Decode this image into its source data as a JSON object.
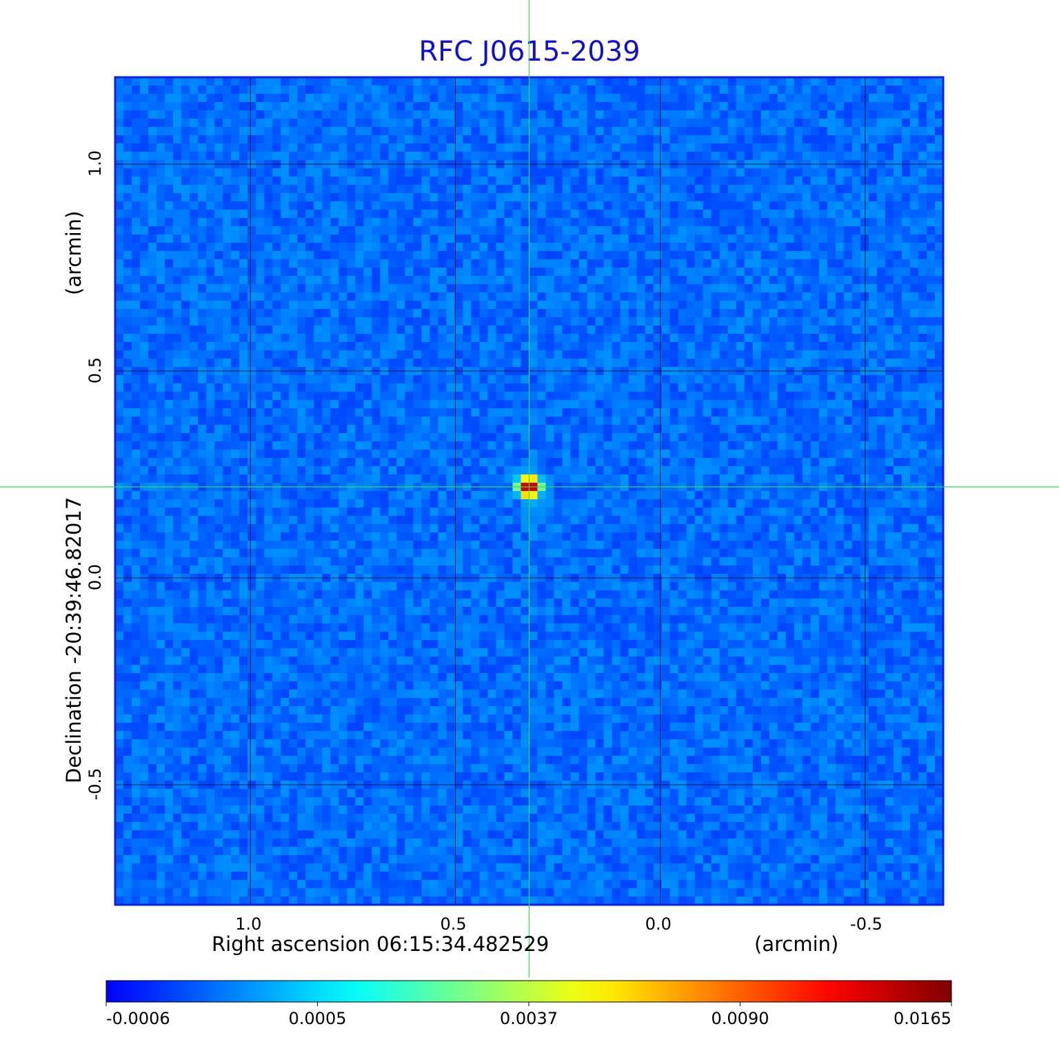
{
  "chart_data": {
    "type": "heatmap",
    "title": "RFC J0615-2039",
    "xlabel": "Right ascension  06:15:34.482529",
    "xunit": "(arcmin)",
    "ylabel": "Declination  -20:39:46.82017",
    "yunit": "(arcmin)",
    "x_ticks": [
      "1.0",
      "0.5",
      "0.0",
      "-0.5"
    ],
    "x_tick_values": [
      1.0,
      0.5,
      0.0,
      -0.5
    ],
    "xlim": [
      1.33,
      -0.69
    ],
    "y_ticks": [
      "1.0",
      "0.5",
      "0.0",
      "-0.5"
    ],
    "y_tick_values": [
      1.0,
      0.5,
      0.0,
      -0.5
    ],
    "ylim": [
      -0.79,
      1.21
    ],
    "grid": true,
    "crosshair": {
      "x": 0.32,
      "y": 0.22,
      "color": "#33dd44"
    },
    "colormap": "jet",
    "colorbar_ticks": [
      "-0.0006",
      "0.0005",
      "0.0037",
      "0.0090",
      "0.0165"
    ],
    "colorbar_range": [
      -0.0006,
      0.0165
    ],
    "peak": {
      "x": 0.32,
      "y": 0.22,
      "value": 0.0165
    },
    "background_level": 0.0002
  }
}
